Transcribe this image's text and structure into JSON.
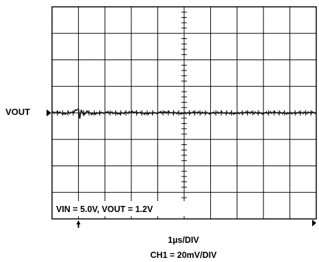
{
  "chart_data": {
    "type": "line",
    "title": "",
    "trace_label": "VOUT",
    "annotation": "VIN = 5.0V, VOUT = 1.2V",
    "time_scale": "1µs/DIV",
    "channel_scale": "CH1 = 20mV/DIV",
    "grid": true,
    "x_divisions": 10,
    "y_divisions": 8,
    "trigger_marker_division": 1,
    "level_marker": "left",
    "series": [
      {
        "x": [
          0,
          0.25,
          0.5,
          0.75,
          1.0,
          1.05,
          1.1,
          1.2,
          1.3,
          1.5,
          2,
          2.5,
          3,
          3.5,
          4,
          4.5,
          5,
          5.5,
          6,
          6.5,
          7,
          7.5,
          8,
          8.5,
          9,
          9.5,
          10
        ],
        "y": [
          0,
          0.02,
          -0.03,
          0.02,
          0.15,
          -0.18,
          0.12,
          -0.08,
          0.05,
          -0.03,
          0.02,
          -0.02,
          0.03,
          -0.02,
          0.01,
          0.02,
          -0.02,
          0.02,
          -0.01,
          0.01,
          -0.02,
          0.02,
          -0.01,
          0.02,
          -0.02,
          0.01,
          0.02
        ]
      }
    ]
  }
}
